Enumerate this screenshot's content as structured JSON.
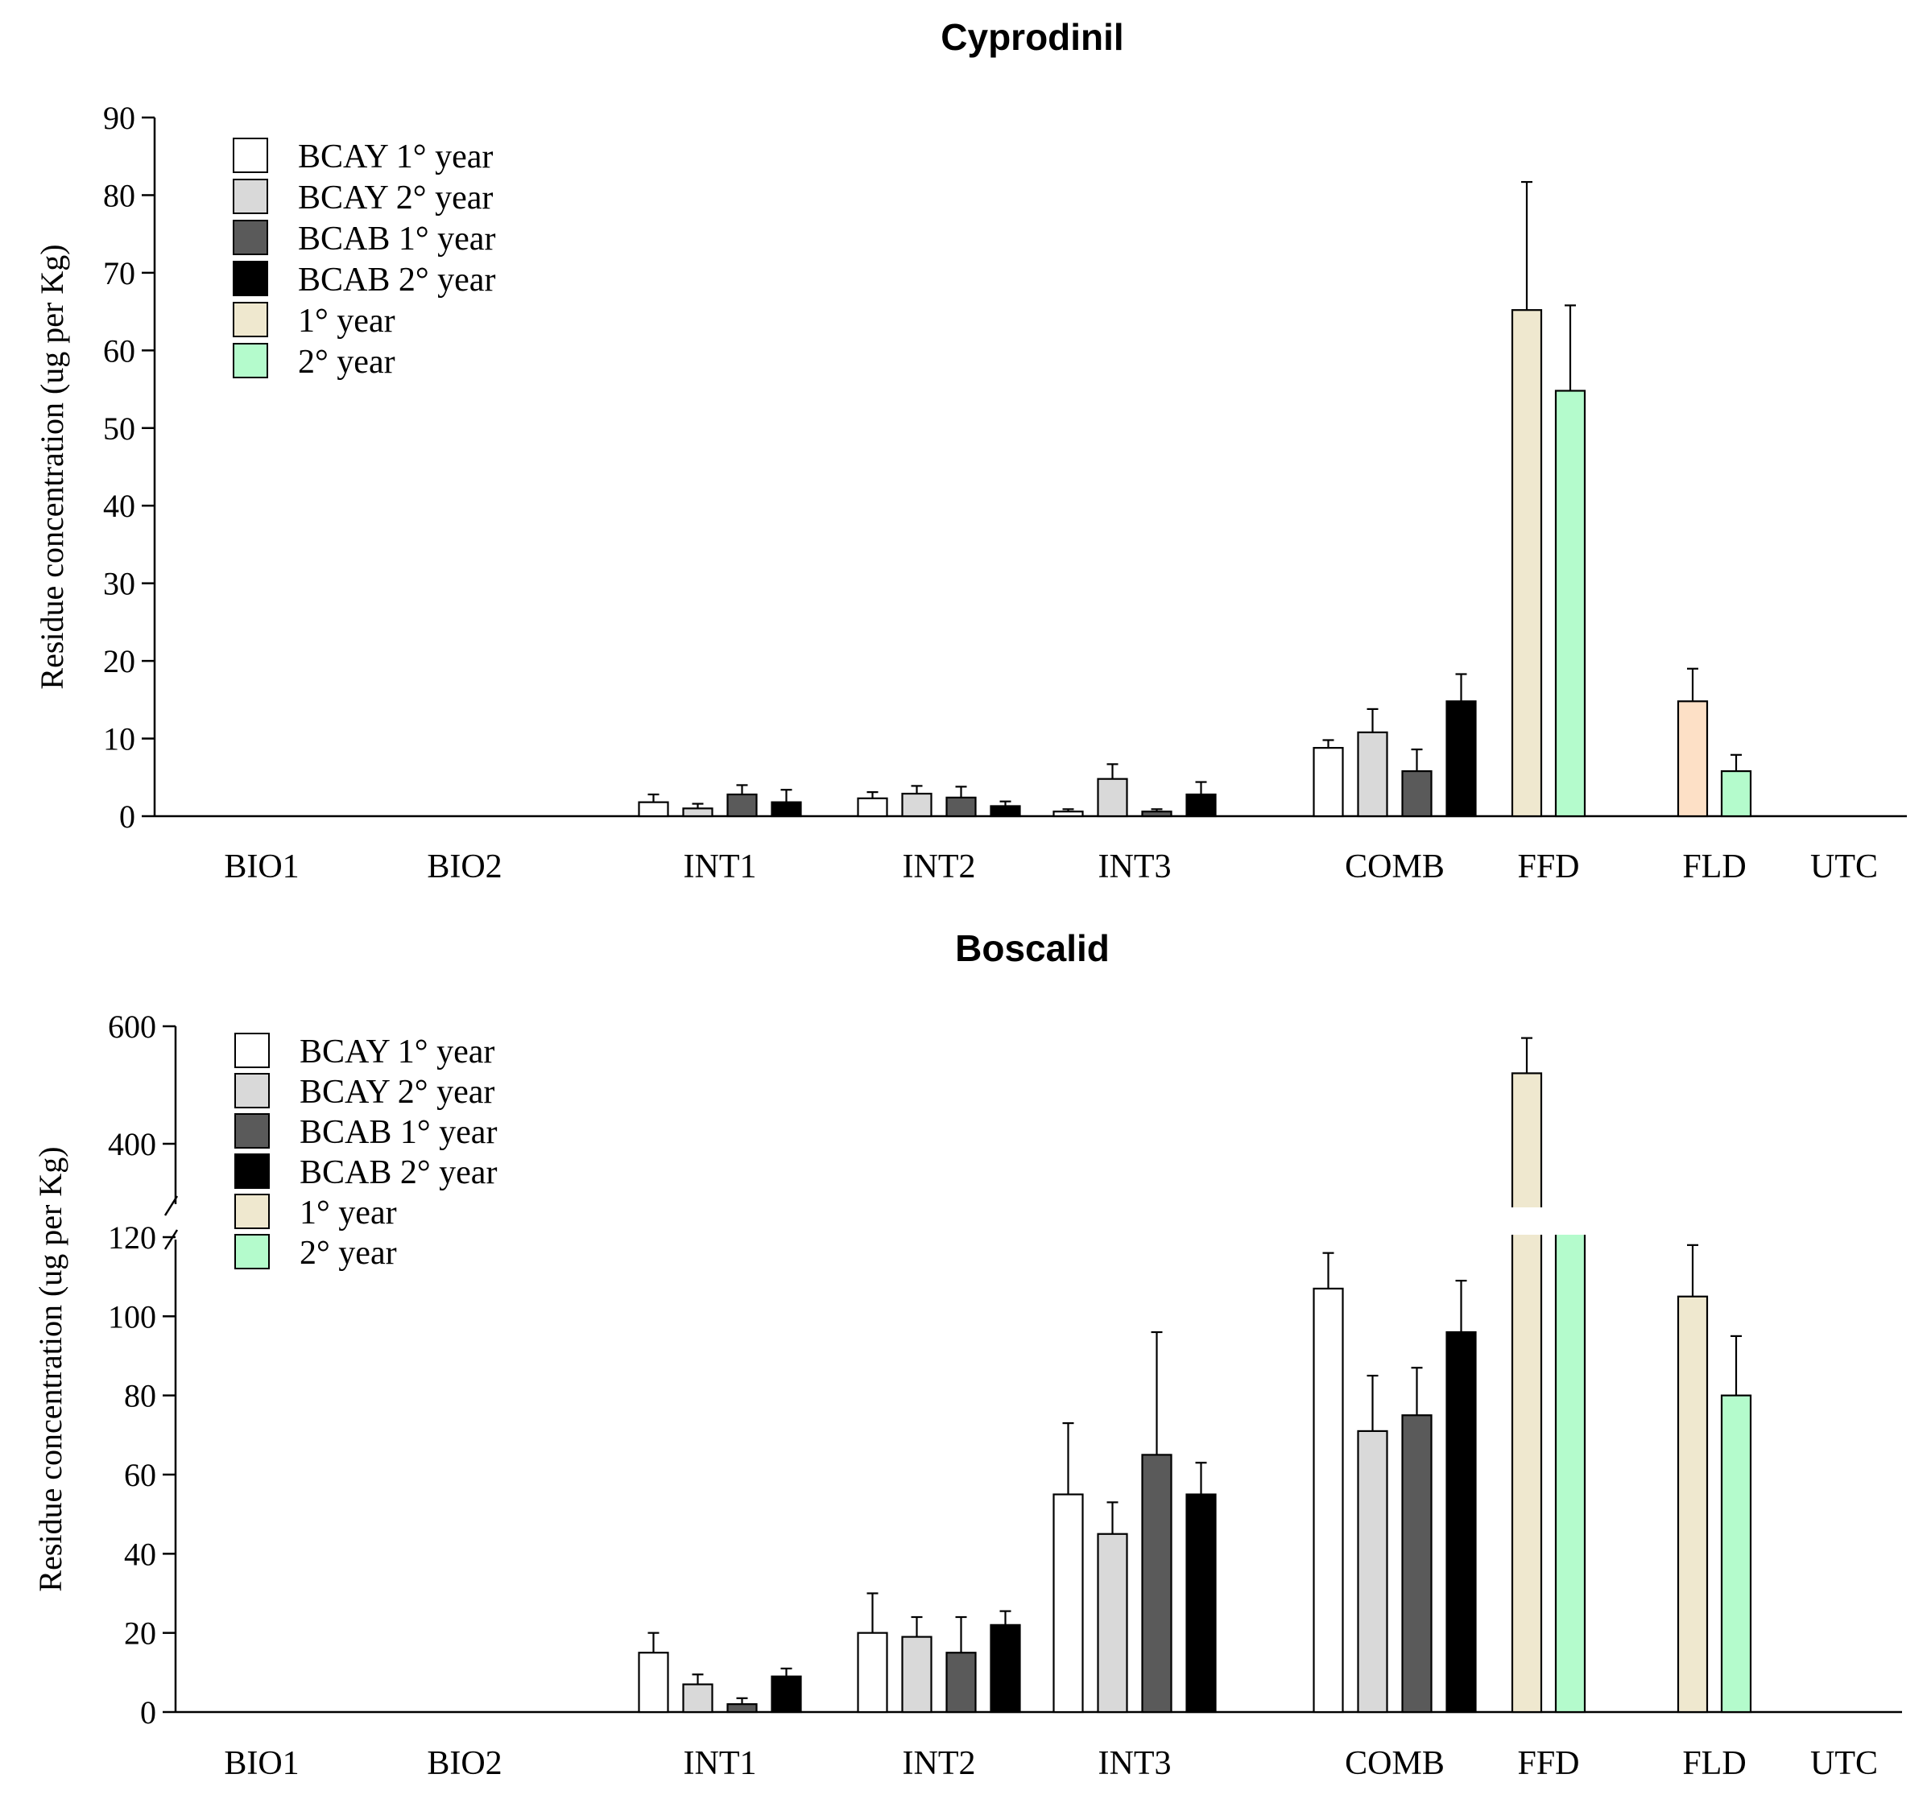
{
  "figure_text": {
    "legend_labels": [
      "BCAY 1° year",
      "BCAY 2° year",
      "BCAB 1° year",
      "BCAB 2° year",
      "1° year",
      "2° year"
    ],
    "series_colors": [
      "#ffffff",
      "#d9d9d9",
      "#5a5a5a",
      "#000000",
      "#efe8cf",
      "#b4fbcc"
    ],
    "fld_year1_color_cyprodinil": "#fde0c6"
  },
  "chart_data": [
    {
      "type": "bar",
      "title": "Cyprodinil",
      "ylabel": "Residue concentration (ug per Kg)",
      "xlabel": "",
      "ylim": [
        0,
        90
      ],
      "yticks": [
        0,
        10,
        20,
        30,
        40,
        50,
        60,
        70,
        80,
        90
      ],
      "categories": [
        "BIO1",
        "BIO2",
        "INT1",
        "INT2",
        "INT3",
        "COMB",
        "FFD",
        "FLD",
        "UTC"
      ],
      "series": [
        {
          "name": "BCAY 1° year",
          "values": [
            0,
            0,
            1.8,
            2.3,
            0.6,
            8.8,
            null,
            null,
            0
          ],
          "errors": [
            0,
            0,
            1.0,
            0.8,
            0.3,
            1.0,
            null,
            null,
            0
          ]
        },
        {
          "name": "BCAY 2° year",
          "values": [
            0,
            0,
            1.0,
            2.9,
            4.8,
            10.8,
            null,
            null,
            0
          ],
          "errors": [
            0,
            0,
            0.6,
            1.0,
            1.9,
            3.0,
            null,
            null,
            0
          ]
        },
        {
          "name": "BCAB 1° year",
          "values": [
            0,
            0,
            2.8,
            2.4,
            0.6,
            5.8,
            null,
            null,
            0
          ],
          "errors": [
            0,
            0,
            1.2,
            1.4,
            0.3,
            2.8,
            null,
            null,
            0
          ]
        },
        {
          "name": "BCAB 2° year",
          "values": [
            0,
            0,
            1.8,
            1.3,
            2.8,
            14.8,
            null,
            null,
            0
          ],
          "errors": [
            0,
            0,
            1.6,
            0.6,
            1.6,
            3.5,
            null,
            null,
            0
          ]
        },
        {
          "name": "1° year",
          "values": [
            null,
            null,
            null,
            null,
            null,
            null,
            65.2,
            14.8,
            null
          ],
          "errors": [
            null,
            null,
            null,
            null,
            null,
            null,
            16.5,
            4.2,
            null
          ]
        },
        {
          "name": "2° year",
          "values": [
            null,
            null,
            null,
            null,
            null,
            null,
            54.8,
            5.8,
            null
          ],
          "errors": [
            null,
            null,
            null,
            null,
            null,
            null,
            11.0,
            2.1,
            null
          ]
        }
      ]
    },
    {
      "type": "bar",
      "title": "Boscalid",
      "ylabel": "Residue concentration (ug per Kg)",
      "xlabel": "",
      "ylim": [
        0,
        600
      ],
      "axis_break": [
        125,
        375
      ],
      "yticks": [
        0,
        20,
        40,
        60,
        80,
        100,
        120,
        400,
        600
      ],
      "categories": [
        "BIO1",
        "BIO2",
        "INT1",
        "INT2",
        "INT3",
        "COMB",
        "FFD",
        "FLD",
        "UTC"
      ],
      "series": [
        {
          "name": "BCAY 1° year",
          "values": [
            0,
            0,
            15,
            20,
            55,
            107,
            null,
            null,
            0
          ],
          "errors": [
            0,
            0,
            5,
            10,
            18,
            9,
            null,
            null,
            0
          ]
        },
        {
          "name": "BCAY 2° year",
          "values": [
            0,
            0,
            7,
            19,
            45,
            71,
            null,
            null,
            0
          ],
          "errors": [
            0,
            0,
            2.5,
            5,
            8,
            14,
            null,
            null,
            0
          ]
        },
        {
          "name": "BCAB 1° year",
          "values": [
            0,
            0,
            2,
            15,
            65,
            75,
            null,
            null,
            0
          ],
          "errors": [
            0,
            0,
            1.5,
            9,
            31,
            12,
            null,
            null,
            0
          ]
        },
        {
          "name": "BCAB 2° year",
          "values": [
            0,
            0,
            9,
            22,
            55,
            96,
            null,
            null,
            0
          ],
          "errors": [
            0,
            0,
            2,
            3.5,
            8,
            13,
            null,
            null,
            0
          ]
        },
        {
          "name": "1° year",
          "values": [
            null,
            null,
            null,
            null,
            null,
            null,
            520,
            105,
            null
          ],
          "errors": [
            null,
            null,
            null,
            null,
            null,
            null,
            60,
            13,
            null
          ]
        },
        {
          "name": "2° year",
          "values": [
            null,
            null,
            null,
            null,
            null,
            null,
            345,
            80,
            null
          ],
          "errors": [
            null,
            null,
            null,
            null,
            null,
            null,
            25,
            15,
            null
          ]
        }
      ]
    }
  ]
}
